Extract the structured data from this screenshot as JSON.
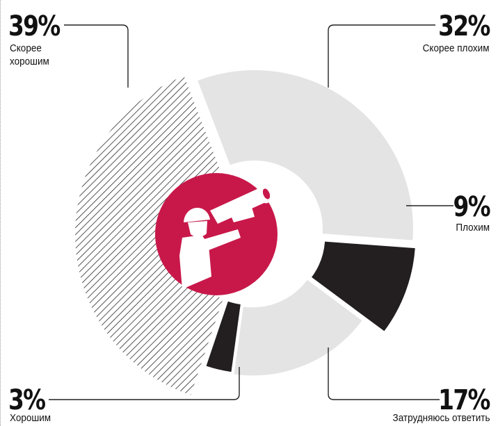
{
  "chart_data": {
    "type": "pie",
    "variant": "exploded-donut",
    "slices": [
      {
        "key": "scoree_plohim",
        "label": "Скорее плохим",
        "value": 32,
        "display": "32%",
        "fill": "#e4e4e4",
        "pattern": "solid"
      },
      {
        "key": "plohim",
        "label": "Плохим",
        "value": 9,
        "display": "9%",
        "fill": "#231f20",
        "pattern": "solid"
      },
      {
        "key": "zatrudnyayus",
        "label": "Затрудняюсь ответить",
        "value": 17,
        "display": "17%",
        "fill": "#e4e4e4",
        "pattern": "solid"
      },
      {
        "key": "horoshim",
        "label": "Хорошим",
        "value": 3,
        "display": "3%",
        "fill": "#231f20",
        "pattern": "solid"
      },
      {
        "key": "scoree_horoshim",
        "label": "Скорее\nхорошим",
        "value": 39,
        "display": "39%",
        "fill": "#ffffff",
        "pattern": "hatch"
      }
    ],
    "center_icon": "soldier-with-grenade-launcher-icon",
    "center_color": "#c8184a",
    "legend": "none"
  }
}
